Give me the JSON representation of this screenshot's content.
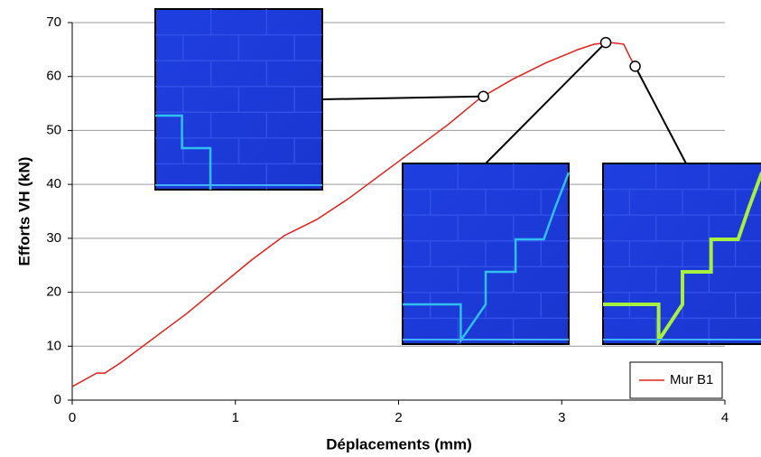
{
  "chart_data": {
    "type": "line",
    "xlabel": "Déplacements (mm)",
    "ylabel": "Efforts VH (kN)",
    "x": [
      0,
      0.15,
      0.2,
      0.3,
      0.5,
      0.7,
      0.9,
      1.1,
      1.3,
      1.5,
      1.7,
      1.9,
      2.1,
      2.3,
      2.5,
      2.7,
      2.9,
      3.1,
      3.2,
      3.3,
      3.38,
      3.42,
      3.45
    ],
    "series": [
      {
        "name": "Mur B1",
        "color": "#e0201a",
        "values": [
          2.5,
          5,
          5,
          7,
          11.5,
          16,
          21,
          26,
          30.5,
          33.5,
          37.5,
          42,
          46.5,
          51,
          56,
          59.5,
          62.5,
          65,
          66,
          66.3,
          66,
          63.5,
          61.9
        ]
      }
    ],
    "highlights": {
      "x": [
        2.52,
        3.27,
        3.45
      ],
      "y": [
        56.3,
        66.3,
        61.9
      ]
    },
    "xlim": [
      0,
      4
    ],
    "xticks": [
      0,
      1,
      2,
      3,
      4
    ],
    "ylim": [
      0,
      70
    ],
    "yticks": [
      0,
      10,
      20,
      30,
      40,
      50,
      60,
      70
    ],
    "grid": true,
    "legend": "lower right"
  }
}
